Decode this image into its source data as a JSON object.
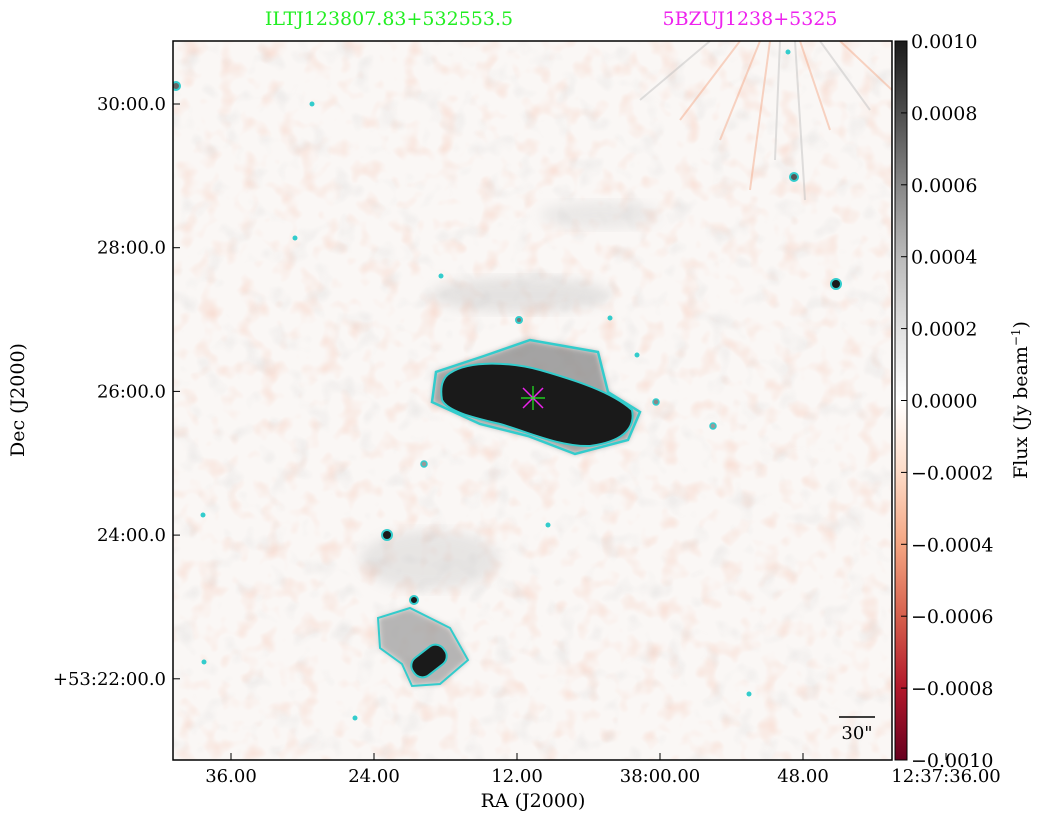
{
  "chart_data": {
    "type": "heatmap",
    "title_left": "ILTJ123807.83+532553.5",
    "title_right": "5BZUJ1238+5325",
    "title_left_color": "#22ee22",
    "title_right_color": "#ee22ee",
    "xlabel": "RA (J2000)",
    "ylabel": "Dec (J2000)",
    "x_ticks": [
      "36.00",
      "24.00",
      "12.00",
      "38:00.00",
      "48.00",
      "12:37:36.00"
    ],
    "y_ticks": [
      "30:00.0",
      "28:00.0",
      "26:00.0",
      "24:00.0",
      "+53:22:00.0"
    ],
    "colorbar": {
      "label": "Flux (Jy beam",
      "label_sup": "−1",
      "label_close": ")",
      "min": -0.001,
      "max": 0.001,
      "ticks": [
        "0.0010",
        "0.0008",
        "0.0006",
        "0.0004",
        "0.0002",
        "0.0000",
        "−0.0002",
        "−0.0004",
        "−0.0006",
        "−0.0008",
        "−0.0010"
      ],
      "colormap": "RdGy_r"
    },
    "scale_bar_label": "30\"",
    "contour_color": "#33cccc",
    "marker_color": "#ee22ee",
    "grid": false
  }
}
